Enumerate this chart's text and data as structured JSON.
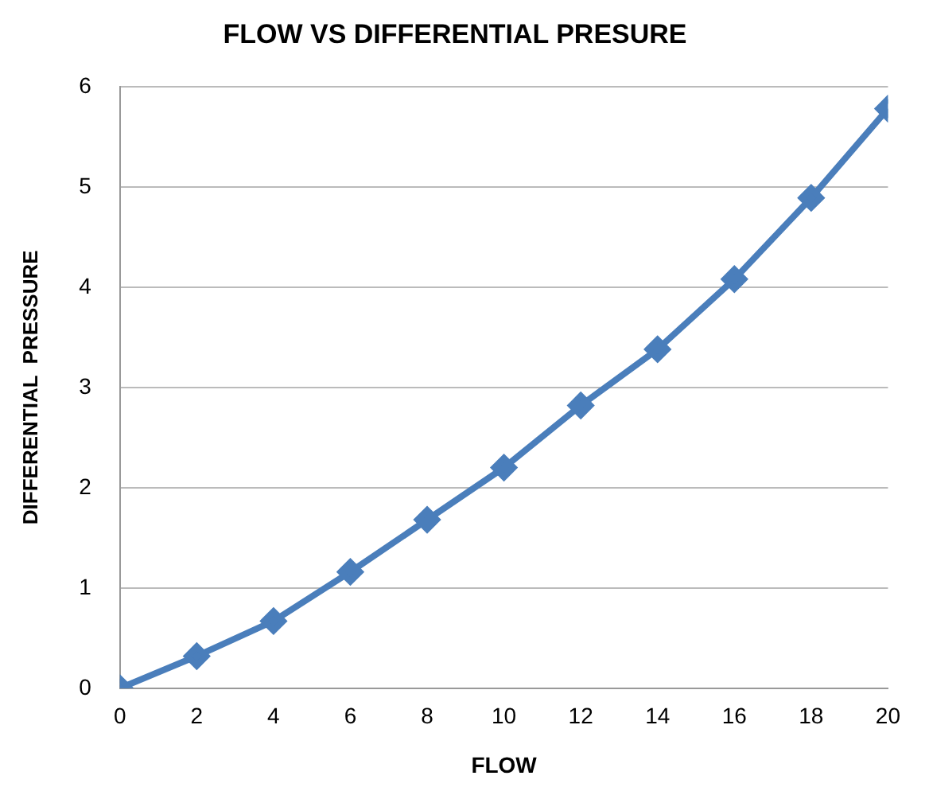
{
  "chart_data": {
    "type": "line",
    "title": "FLOW VS DIFFERENTIAL PRESURE",
    "xlabel": "FLOW",
    "ylabel": "DIFFERENTIAL  PRESSURE",
    "x": [
      0,
      2,
      4,
      6,
      8,
      10,
      12,
      14,
      16,
      18,
      20
    ],
    "series": [
      {
        "color": "#4a7ebb",
        "values": [
          0,
          0.32,
          0.67,
          1.16,
          1.68,
          2.2,
          2.82,
          3.38,
          4.08,
          4.89,
          5.78
        ]
      }
    ],
    "xlim": [
      0,
      20
    ],
    "xticks": [
      0,
      2,
      4,
      6,
      8,
      10,
      12,
      14,
      16,
      18,
      20
    ],
    "ylim": [
      0,
      6
    ],
    "yticks": [
      0,
      1,
      2,
      3,
      4,
      5,
      6
    ],
    "grid": "y",
    "legend": false,
    "marker": "diamond",
    "line_style": "solid"
  }
}
